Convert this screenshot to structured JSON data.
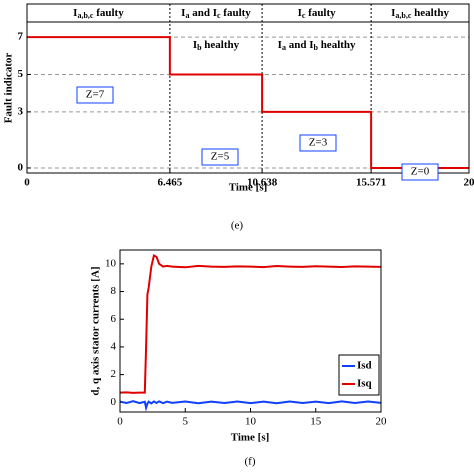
{
  "chart_data": [
    {
      "type": "line",
      "drawstyle": "steps-post",
      "xlabel": "Time [s]",
      "ylabel": "Fault indicator",
      "x": [
        0,
        6.465,
        10.638,
        15.571,
        20
      ],
      "series": [
        {
          "color": "#e00000",
          "values": [
            7,
            5,
            3,
            0,
            0
          ]
        }
      ],
      "xlim": [
        0,
        20
      ],
      "ylim": [
        -0.27,
        8.77
      ],
      "xticks": [
        0,
        6.465,
        10.638,
        15.571,
        20
      ],
      "yticks": [
        0,
        3,
        5,
        7
      ],
      "grid": true,
      "segment_labels": [
        [
          [
            "I",
            "a,b,c",
            " faulty"
          ]
        ],
        [
          [
            "I",
            "a",
            " and I",
            "c",
            " faulty"
          ],
          [
            "I",
            "b",
            " healthy"
          ]
        ],
        [
          [
            "I",
            "c",
            " faulty"
          ],
          [
            "I",
            "a",
            " and I",
            "b",
            " healthy"
          ]
        ],
        [
          [
            "I",
            "a,b,c",
            " healthy"
          ]
        ]
      ],
      "state_labels": [
        "Z=7",
        "Z=5",
        "Z=3",
        "Z=0"
      ],
      "caption": "(e)"
    },
    {
      "type": "line",
      "xlabel": "Time [s]",
      "ylabel": "d, q axis stator currents [A]",
      "x": [
        0,
        0.5,
        1,
        1.5,
        1.9,
        2.0,
        2.1,
        2.2,
        2.4,
        2.6,
        2.8,
        3.0,
        3.3,
        3.6,
        4,
        5,
        6,
        7,
        8,
        9,
        10,
        11,
        12,
        13,
        14,
        15,
        16,
        17,
        18,
        19,
        20
      ],
      "series": [
        {
          "name": "Isd",
          "color": "#1040ff",
          "values": [
            0.05,
            -0.05,
            0.08,
            -0.06,
            0.04,
            -0.4,
            -0.1,
            0.05,
            -0.08,
            0.06,
            -0.05,
            0.07,
            -0.06,
            0.05,
            -0.04,
            0.06,
            -0.07,
            0.05,
            -0.05,
            0.06,
            -0.06,
            0.05,
            -0.07,
            0.06,
            -0.05,
            0.05,
            -0.06,
            0.07,
            -0.05,
            0.06,
            -0.04
          ]
        },
        {
          "name": "Isq",
          "color": "#e00000",
          "values": [
            0.7,
            0.72,
            0.68,
            0.7,
            0.7,
            4,
            7.8,
            8.3,
            9.8,
            10.6,
            10.5,
            10.0,
            9.8,
            9.85,
            9.8,
            9.75,
            9.85,
            9.8,
            9.78,
            9.82,
            9.8,
            9.76,
            9.84,
            9.8,
            9.78,
            9.83,
            9.8,
            9.77,
            9.82,
            9.8,
            9.78
          ]
        }
      ],
      "xlim": [
        0,
        20
      ],
      "ylim": [
        -0.7,
        11
      ],
      "xticks": [
        0,
        5,
        10,
        15,
        20
      ],
      "yticks": [
        0,
        2,
        4,
        6,
        8,
        10
      ],
      "legend": "lower right",
      "caption": "(f)"
    }
  ]
}
